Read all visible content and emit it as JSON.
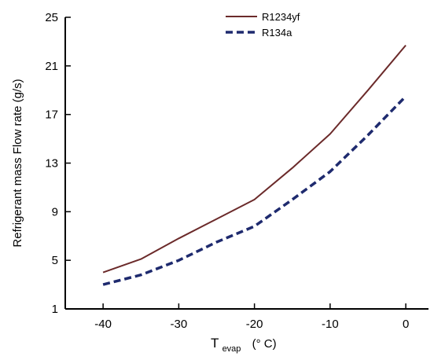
{
  "chart_data": {
    "type": "line",
    "title": "",
    "xlabel": "T",
    "xlabel_subscript": "evap",
    "xlabel_unit": "(° C)",
    "ylabel": "Refrigerant mass Flow rate (g/s)",
    "xlim": [
      -45,
      3
    ],
    "ylim": [
      1,
      25
    ],
    "xticks": [
      -40,
      -30,
      -20,
      -10,
      0
    ],
    "yticks": [
      1,
      5,
      9,
      13,
      17,
      21,
      25
    ],
    "grid": false,
    "legend": "top-center",
    "series": [
      {
        "name": "R1234yf",
        "color": "#6b2a2a",
        "dash": "solid",
        "x": [
          -40,
          -35,
          -30,
          -25,
          -20,
          -15,
          -10,
          -5,
          0
        ],
        "y": [
          4.0,
          5.1,
          6.8,
          8.4,
          10.0,
          12.6,
          15.4,
          19.0,
          22.7
        ]
      },
      {
        "name": "R134a",
        "color": "#1e2a6e",
        "dash": "dashed",
        "x": [
          -40,
          -35,
          -30,
          -25,
          -20,
          -15,
          -10,
          -5,
          0
        ],
        "y": [
          3.0,
          3.8,
          5.0,
          6.5,
          7.8,
          10.0,
          12.3,
          15.3,
          18.5
        ]
      }
    ]
  }
}
